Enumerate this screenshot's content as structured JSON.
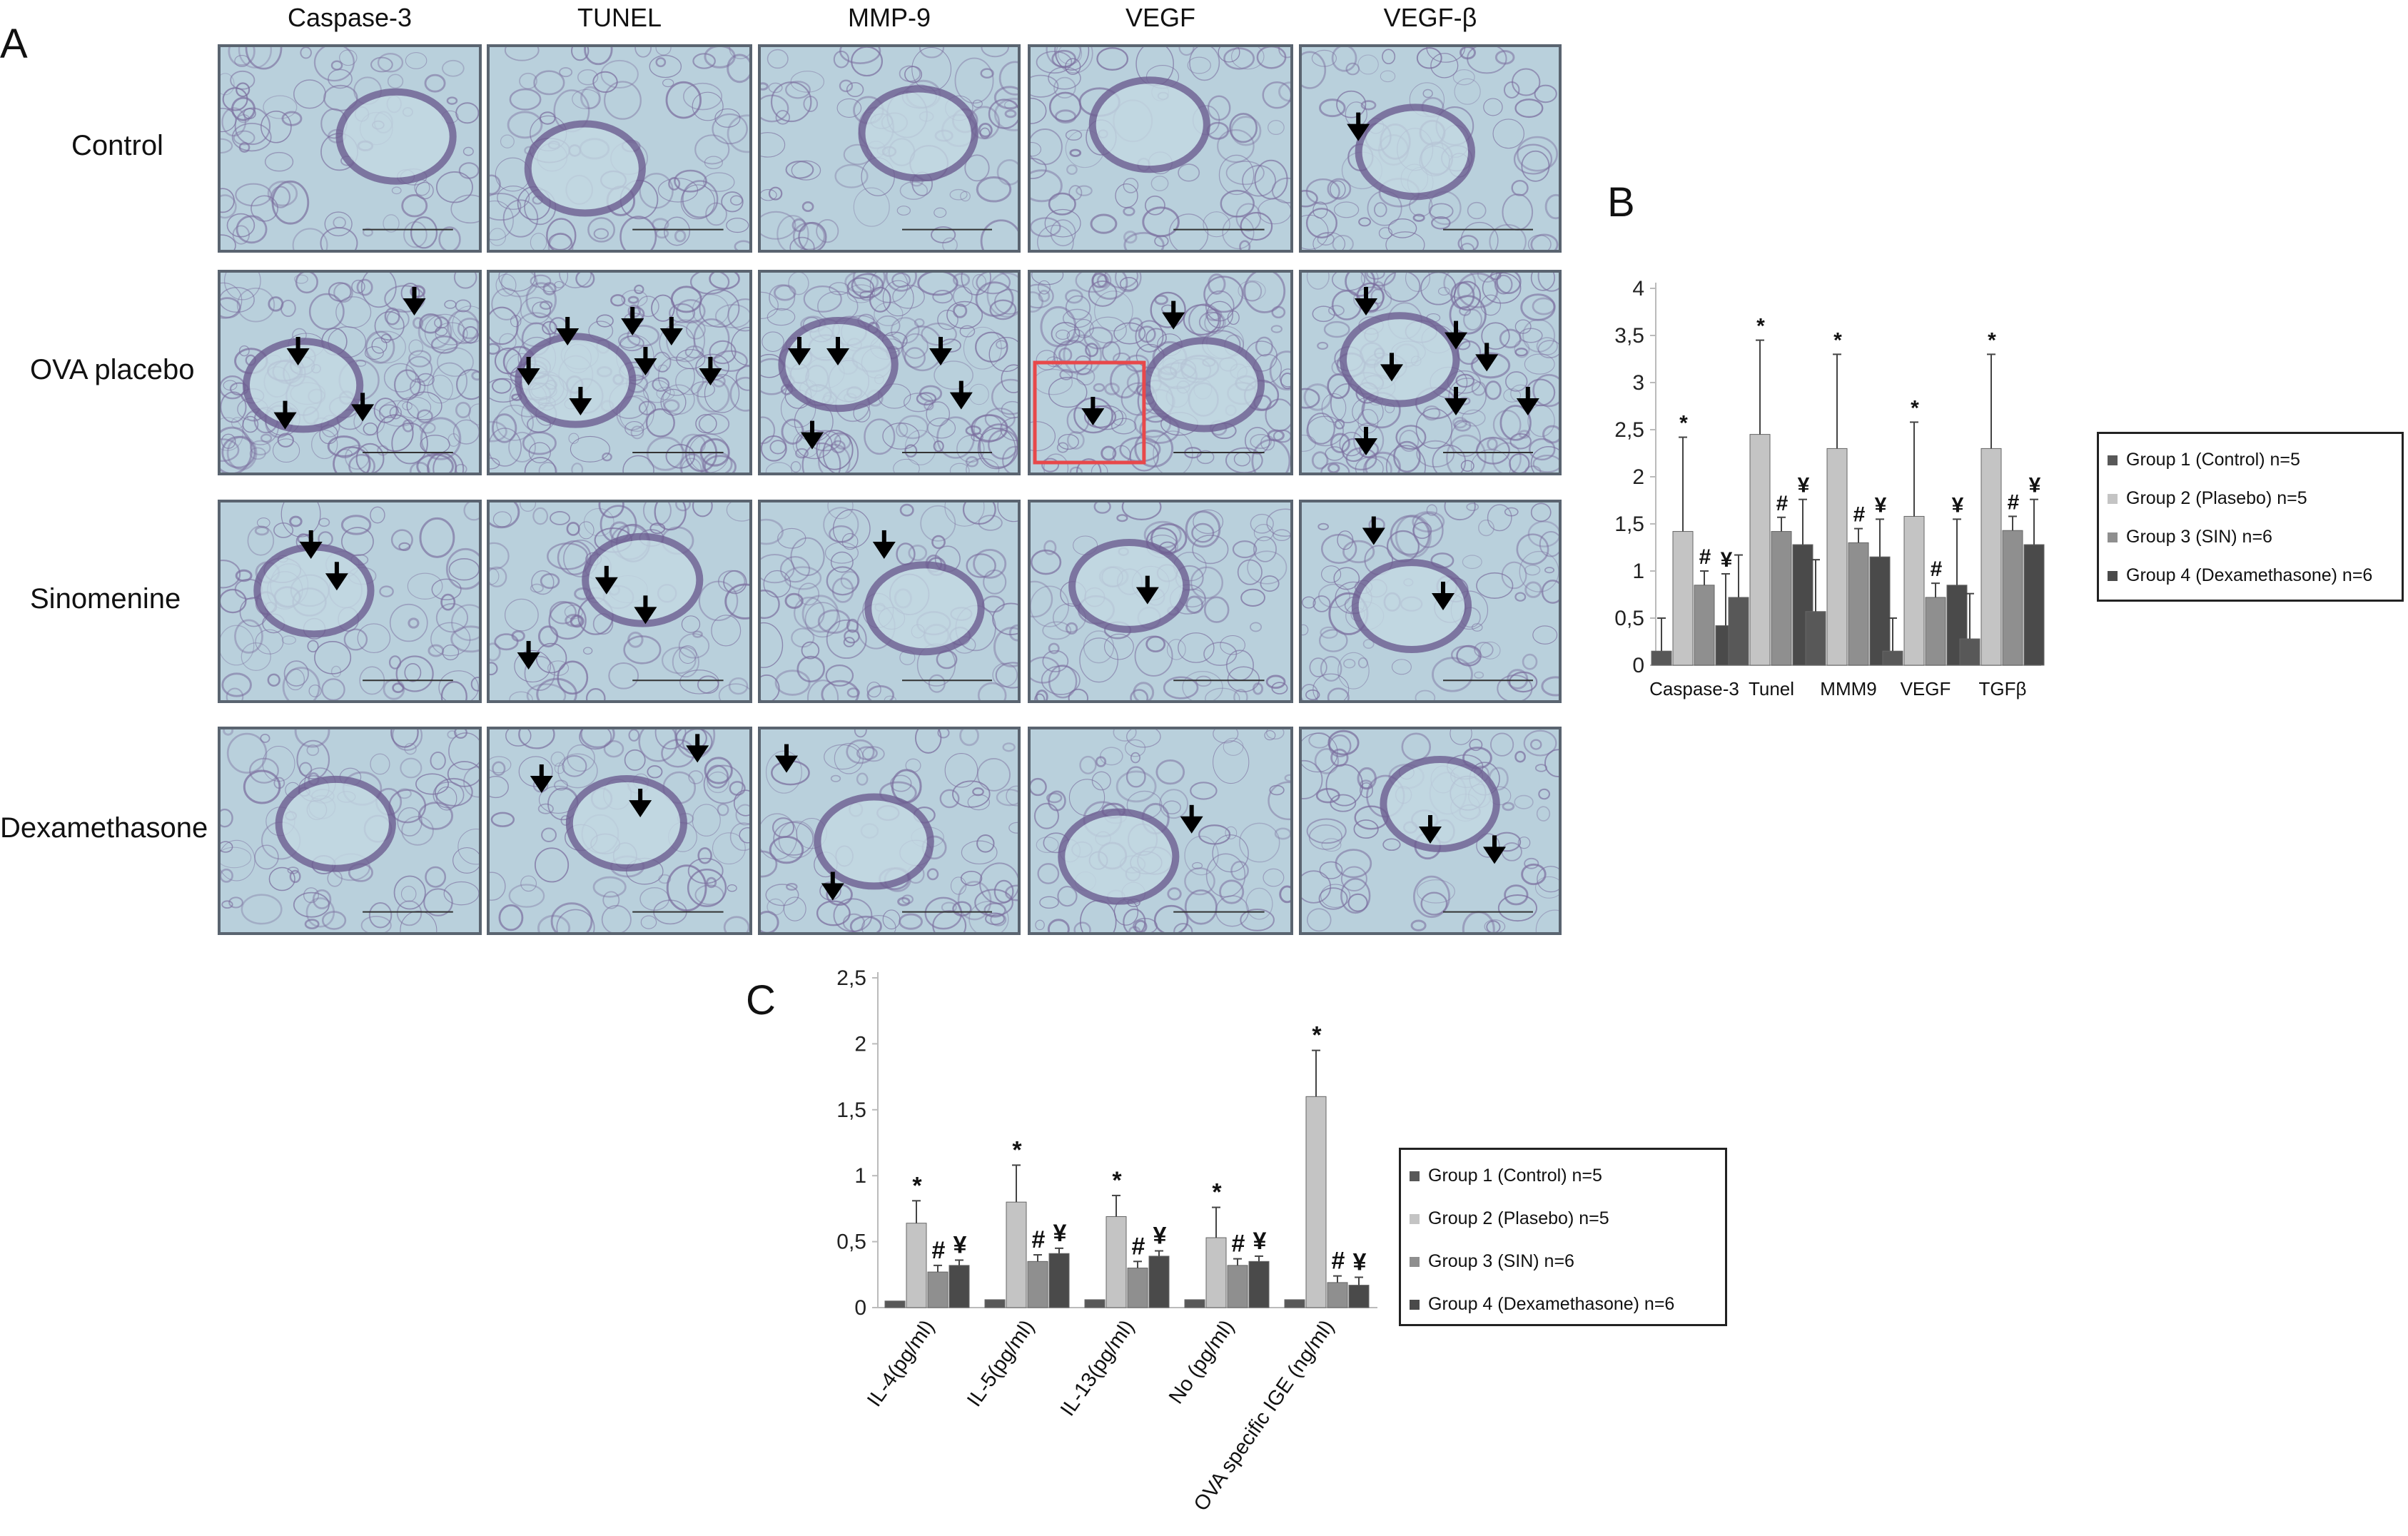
{
  "panel_a": {
    "letter": "A",
    "columns": [
      "Caspase-3",
      "TUNEL",
      "MMP-9",
      "VEGF",
      "VEGF-β"
    ],
    "rows": [
      "Control",
      "OVA placebo",
      "Sinomenine",
      "Dexamethasone"
    ]
  },
  "panel_b": {
    "letter": "B"
  },
  "panel_c": {
    "letter": "C"
  },
  "colors": {
    "group1": "#585858",
    "group2": "#c4c4c4",
    "group3": "#8f8f8f",
    "group4": "#4a4a4a",
    "tissue_bg": "#b9d0dc",
    "tissue_stain": "#7b6e9e",
    "highlight_box": "#e8484a"
  },
  "chart_data": [
    {
      "type": "bar",
      "panel": "B",
      "categories": [
        "Caspase-3",
        "Tunel",
        "MMM9",
        "VEGF",
        "TGFβ"
      ],
      "series": [
        {
          "name": "Group 1 (Control) n=5",
          "values": [
            0.15,
            0.72,
            0.57,
            0.15,
            0.28
          ],
          "errors": [
            0.35,
            0.45,
            0.55,
            0.35,
            0.48
          ]
        },
        {
          "name": "Group 2 (Plasebo) n=5",
          "values": [
            1.42,
            2.45,
            2.3,
            1.58,
            2.3
          ],
          "errors": [
            1.0,
            1.0,
            1.0,
            1.0,
            1.0
          ]
        },
        {
          "name": "Group 3 (SIN) n=6",
          "values": [
            0.85,
            1.42,
            1.3,
            0.72,
            1.43
          ],
          "errors": [
            0.15,
            0.15,
            0.15,
            0.15,
            0.15
          ]
        },
        {
          "name": "Group 4 (Dexamethasone) n=6",
          "values": [
            0.42,
            1.28,
            1.15,
            0.85,
            1.28
          ],
          "errors": [
            0.55,
            0.48,
            0.4,
            0.7,
            0.48
          ]
        }
      ],
      "annotations": [
        {
          "category": "Caspase-3",
          "series": 2,
          "text": "*"
        },
        {
          "category": "Caspase-3",
          "series": 3,
          "text": "#"
        },
        {
          "category": "Caspase-3",
          "series": 4,
          "text": "¥"
        },
        {
          "category": "Tunel",
          "series": 2,
          "text": "*"
        },
        {
          "category": "Tunel",
          "series": 3,
          "text": "#"
        },
        {
          "category": "Tunel",
          "series": 4,
          "text": "¥"
        },
        {
          "category": "MMM9",
          "series": 2,
          "text": "*"
        },
        {
          "category": "MMM9",
          "series": 3,
          "text": "#"
        },
        {
          "category": "MMM9",
          "series": 4,
          "text": "¥"
        },
        {
          "category": "VEGF",
          "series": 2,
          "text": "*"
        },
        {
          "category": "VEGF",
          "series": 3,
          "text": "#"
        },
        {
          "category": "VEGF",
          "series": 4,
          "text": "¥"
        },
        {
          "category": "TGFβ",
          "series": 2,
          "text": "*"
        },
        {
          "category": "TGFβ",
          "series": 3,
          "text": "#"
        },
        {
          "category": "TGFβ",
          "series": 4,
          "text": "¥"
        }
      ],
      "ylim": [
        0,
        4
      ],
      "yticks": [
        "0",
        "0,5",
        "1",
        "1,5",
        "2",
        "2,5",
        "3",
        "3,5",
        "4"
      ],
      "xlabel": "",
      "ylabel": "",
      "legend": "right",
      "grid": false
    },
    {
      "type": "bar",
      "panel": "C",
      "categories": [
        "IL-4(pg/ml)",
        "IL-5(pg/ml)",
        "IL-13(pg/ml)",
        "No (pg/ml)",
        "OVA specific IGE (ng/ml)"
      ],
      "series": [
        {
          "name": "Group 1 (Control) n=5",
          "values": [
            0.05,
            0.06,
            0.06,
            0.06,
            0.06
          ],
          "errors": [
            0,
            0,
            0,
            0,
            0
          ]
        },
        {
          "name": "Group 2 (Plasebo) n=5",
          "values": [
            0.64,
            0.8,
            0.69,
            0.53,
            1.6
          ],
          "errors": [
            0.17,
            0.28,
            0.16,
            0.23,
            0.35
          ]
        },
        {
          "name": "Group 3 (SIN) n=6",
          "values": [
            0.27,
            0.35,
            0.3,
            0.32,
            0.19
          ],
          "errors": [
            0.05,
            0.05,
            0.05,
            0.05,
            0.05
          ]
        },
        {
          "name": "Group 4 (Dexamethasone) n=6",
          "values": [
            0.32,
            0.41,
            0.39,
            0.35,
            0.17
          ],
          "errors": [
            0.04,
            0.04,
            0.04,
            0.04,
            0.06
          ]
        }
      ],
      "annotations": [
        {
          "category": "IL-4(pg/ml)",
          "series": 2,
          "text": "*"
        },
        {
          "category": "IL-4(pg/ml)",
          "series": 3,
          "text": "#"
        },
        {
          "category": "IL-4(pg/ml)",
          "series": 4,
          "text": "¥"
        },
        {
          "category": "IL-5(pg/ml)",
          "series": 2,
          "text": "*"
        },
        {
          "category": "IL-5(pg/ml)",
          "series": 3,
          "text": "#"
        },
        {
          "category": "IL-5(pg/ml)",
          "series": 4,
          "text": "¥"
        },
        {
          "category": "IL-13(pg/ml)",
          "series": 2,
          "text": "*"
        },
        {
          "category": "IL-13(pg/ml)",
          "series": 3,
          "text": "#"
        },
        {
          "category": "IL-13(pg/ml)",
          "series": 4,
          "text": "¥"
        },
        {
          "category": "No (pg/ml)",
          "series": 2,
          "text": "*"
        },
        {
          "category": "No (pg/ml)",
          "series": 3,
          "text": "#"
        },
        {
          "category": "No (pg/ml)",
          "series": 4,
          "text": "¥"
        },
        {
          "category": "OVA specific IGE (ng/ml)",
          "series": 2,
          "text": "*"
        },
        {
          "category": "OVA specific IGE (ng/ml)",
          "series": 3,
          "text": "#"
        },
        {
          "category": "OVA specific IGE (ng/ml)",
          "series": 4,
          "text": "¥"
        }
      ],
      "ylim": [
        0,
        2.5
      ],
      "yticks": [
        "0",
        "0,5",
        "1",
        "1,5",
        "2",
        "2,5"
      ],
      "xlabel": "",
      "ylabel": "",
      "legend": "right",
      "grid": false
    }
  ]
}
